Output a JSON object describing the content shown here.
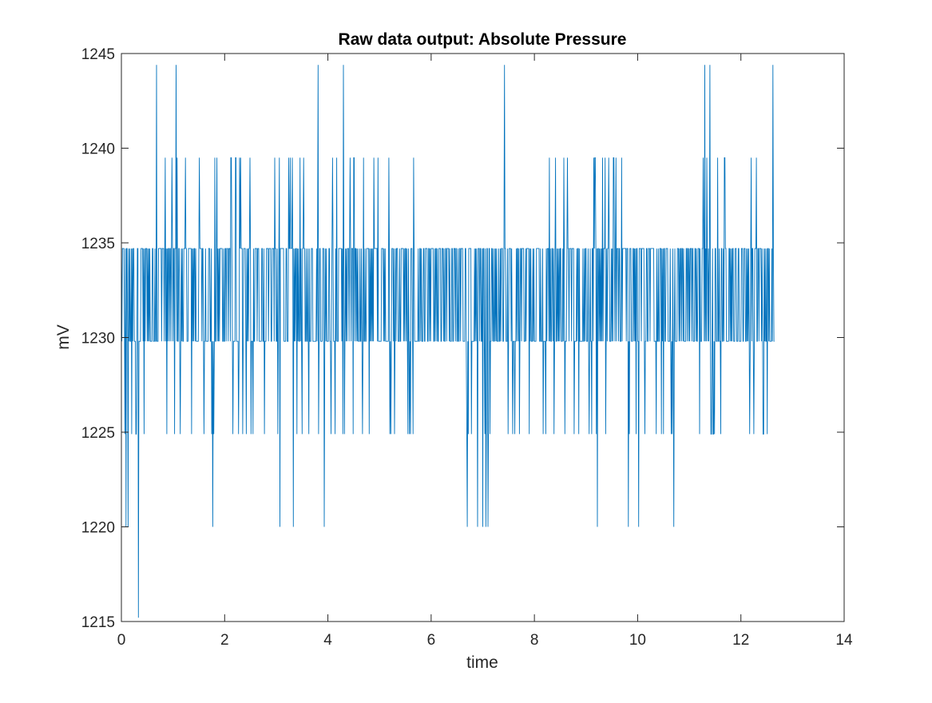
{
  "chart_data": {
    "type": "line",
    "title": "Raw data output: Absolute Pressure",
    "xlabel": "time",
    "ylabel": "mV",
    "xlim": [
      0,
      14
    ],
    "ylim": [
      1215,
      1245
    ],
    "xticks": [
      "0",
      "2",
      "4",
      "6",
      "8",
      "10",
      "12",
      "14"
    ],
    "yticks": [
      "1215",
      "1220",
      "1225",
      "1230",
      "1235",
      "1240",
      "1245"
    ],
    "grid": false,
    "legend": "none",
    "series_color": "#0072BD",
    "series": [
      {
        "sample_interval": 0.01,
        "x_start": 0,
        "x_end": 12.65,
        "levels": [
          1215.2,
          1220.0,
          1224.9,
          1229.8,
          1234.7,
          1239.5,
          1244.4
        ],
        "spikes": [
          [
            0.09,
            1220.0
          ],
          [
            0.13,
            1220.0
          ],
          [
            0.33,
            1215.2
          ],
          [
            0.68,
            1244.4
          ],
          [
            1.06,
            1244.4
          ],
          [
            1.77,
            1220.0
          ],
          [
            3.07,
            1220.0
          ],
          [
            3.33,
            1220.0
          ],
          [
            3.81,
            1244.4
          ],
          [
            3.93,
            1220.0
          ],
          [
            4.3,
            1244.4
          ],
          [
            6.7,
            1220.0
          ],
          [
            6.9,
            1220.0
          ],
          [
            7.0,
            1220.0
          ],
          [
            7.06,
            1220.0
          ],
          [
            7.1,
            1220.0
          ],
          [
            7.42,
            1244.4
          ],
          [
            9.22,
            1220.0
          ],
          [
            9.82,
            1220.0
          ],
          [
            10.02,
            1220.0
          ],
          [
            10.7,
            1220.0
          ],
          [
            11.3,
            1244.4
          ],
          [
            11.4,
            1244.4
          ],
          [
            12.62,
            1244.4
          ]
        ],
        "segments": [
          {
            "from": 0,
            "to": 0.35,
            "low": 1224.9,
            "high": 1234.7
          },
          {
            "from": 0.35,
            "to": 0.68,
            "low": 1224.9,
            "high": 1234.7
          },
          {
            "from": 0.68,
            "to": 1.3,
            "low": 1224.9,
            "high": 1239.5
          },
          {
            "from": 1.3,
            "to": 2.3,
            "low": 1224.9,
            "high": 1239.5
          },
          {
            "from": 2.3,
            "to": 3.1,
            "low": 1224.9,
            "high": 1239.5
          },
          {
            "from": 3.1,
            "to": 4.0,
            "low": 1224.9,
            "high": 1239.5
          },
          {
            "from": 4.0,
            "to": 5.7,
            "low": 1224.9,
            "high": 1239.5
          },
          {
            "from": 5.7,
            "to": 6.6,
            "low": 1229.8,
            "high": 1234.7
          },
          {
            "from": 6.6,
            "to": 7.2,
            "low": 1224.9,
            "high": 1234.7
          },
          {
            "from": 7.2,
            "to": 7.55,
            "low": 1224.9,
            "high": 1234.7
          },
          {
            "from": 7.55,
            "to": 9.8,
            "low": 1224.9,
            "high": 1239.5
          },
          {
            "from": 9.8,
            "to": 10.7,
            "low": 1224.9,
            "high": 1234.7
          },
          {
            "from": 10.7,
            "to": 11.2,
            "low": 1229.8,
            "high": 1234.7
          },
          {
            "from": 11.2,
            "to": 11.75,
            "low": 1224.9,
            "high": 1239.5
          },
          {
            "from": 11.75,
            "to": 12.15,
            "low": 1229.8,
            "high": 1234.7
          },
          {
            "from": 12.15,
            "to": 12.65,
            "low": 1224.9,
            "high": 1239.5
          }
        ]
      }
    ]
  }
}
